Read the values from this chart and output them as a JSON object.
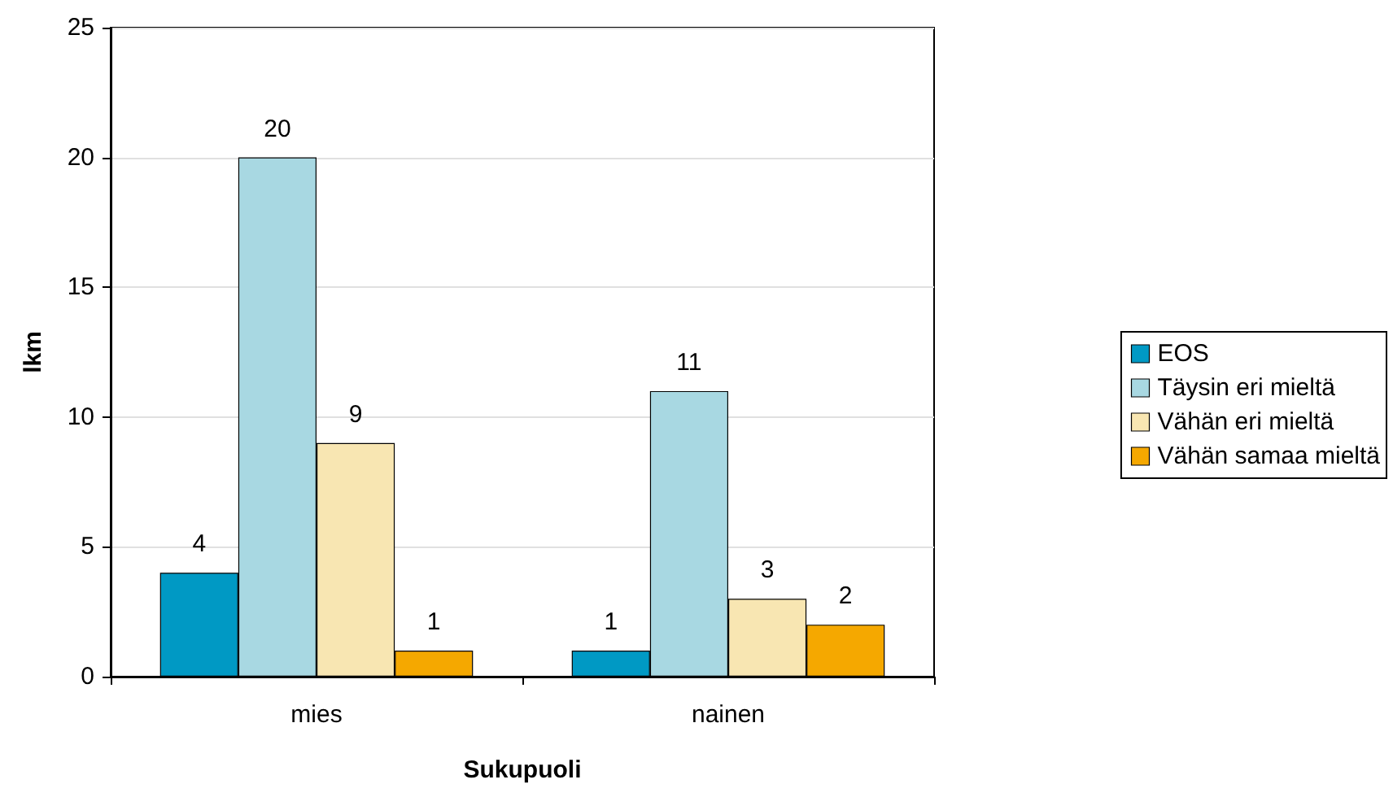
{
  "chart_data": {
    "type": "bar",
    "xlabel": "Sukupuoli",
    "ylabel": "lkm",
    "categories": [
      "mies",
      "nainen"
    ],
    "series": [
      {
        "name": "EOS",
        "color": "#0099c4",
        "values": [
          4,
          1
        ]
      },
      {
        "name": "Täysin eri mieltä",
        "color": "#a8d8e2",
        "values": [
          20,
          11
        ]
      },
      {
        "name": "Vähän eri mieltä",
        "color": "#f8e6b2",
        "values": [
          9,
          3
        ]
      },
      {
        "name": "Vähän samaa mieltä",
        "color": "#f5a800",
        "values": [
          1,
          2
        ]
      }
    ],
    "ylim": [
      0,
      25
    ],
    "yticks": [
      0,
      5,
      10,
      15,
      20,
      25
    ],
    "grid": "y",
    "legend": "right",
    "data_labels": true
  }
}
